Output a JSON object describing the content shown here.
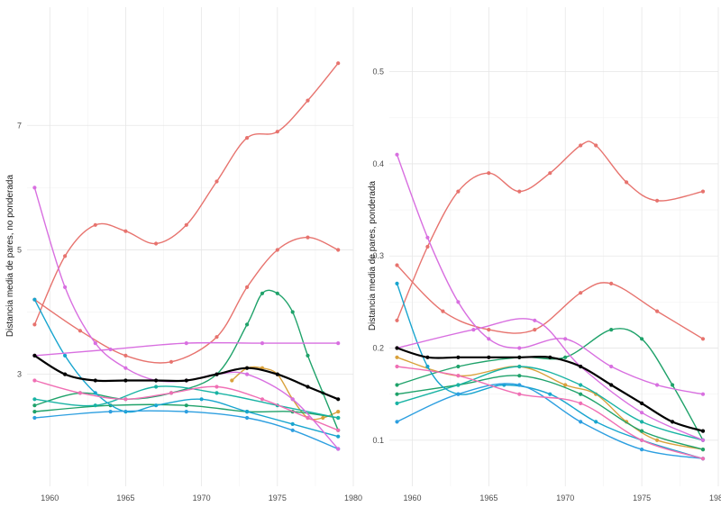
{
  "chart_data": [
    {
      "type": "line",
      "ylabel": "Distancia media de pares, no ponderada",
      "xlim": [
        1958.5,
        1980
      ],
      "ylim": [
        1.2,
        8.9
      ],
      "x_ticks": [
        1960,
        1965,
        1970,
        1975,
        1980
      ],
      "y_ticks": [
        3,
        5,
        7
      ],
      "grid": true,
      "series": [
        {
          "color": "#E7736E",
          "x": [
            1959,
            1961,
            1963,
            1965,
            1967,
            1969,
            1971,
            1973,
            1975,
            1977,
            1979
          ],
          "values": [
            3.8,
            4.9,
            5.4,
            5.3,
            5.1,
            5.4,
            6.1,
            6.8,
            6.9,
            7.4,
            8.0
          ]
        },
        {
          "color": "#E7736E",
          "x": [
            1959,
            1962,
            1965,
            1968,
            1971,
            1973,
            1975,
            1977,
            1979
          ],
          "values": [
            4.2,
            3.7,
            3.3,
            3.2,
            3.6,
            4.4,
            5.0,
            5.2,
            5.0
          ]
        },
        {
          "color": "#D9A13B",
          "x": [
            1972,
            1973,
            1974,
            1975,
            1976,
            1977,
            1978,
            1979
          ],
          "values": [
            2.9,
            3.1,
            3.1,
            3.0,
            2.6,
            2.3,
            2.3,
            2.4
          ]
        },
        {
          "color": "#1FA26A",
          "x": [
            1959,
            1962,
            1965,
            1968,
            1971,
            1973,
            1974,
            1975,
            1976,
            1977,
            1978,
            1979
          ],
          "values": [
            2.5,
            2.7,
            2.6,
            2.7,
            3.0,
            3.8,
            4.3,
            4.3,
            4.0,
            3.3,
            2.7,
            2.1
          ]
        },
        {
          "color": "#1FA26A",
          "x": [
            1959,
            1964,
            1969,
            1973,
            1976,
            1979
          ],
          "values": [
            2.4,
            2.5,
            2.5,
            2.4,
            2.4,
            2.3
          ]
        },
        {
          "color": "#19B3A4",
          "x": [
            1959,
            1963,
            1967,
            1971,
            1975,
            1979
          ],
          "values": [
            2.6,
            2.5,
            2.8,
            2.7,
            2.5,
            2.3
          ]
        },
        {
          "color": "#18A5CF",
          "x": [
            1959,
            1961,
            1963,
            1965,
            1967,
            1970,
            1973,
            1976,
            1979
          ],
          "values": [
            4.2,
            3.3,
            2.7,
            2.4,
            2.5,
            2.6,
            2.4,
            2.2,
            2.0
          ]
        },
        {
          "color": "#2D9FE0",
          "x": [
            1959,
            1964,
            1969,
            1973,
            1976,
            1979
          ],
          "values": [
            2.3,
            2.4,
            2.4,
            2.3,
            2.1,
            1.8
          ]
        },
        {
          "color": "#D86FE0",
          "x": [
            1959,
            1961,
            1963,
            1965,
            1967,
            1969,
            1971,
            1973,
            1976,
            1979
          ],
          "values": [
            6.0,
            4.4,
            3.5,
            3.1,
            2.9,
            2.9,
            3.0,
            3.0,
            2.6,
            1.8
          ]
        },
        {
          "color": "#D86FE0",
          "x": [
            1959,
            1964,
            1969,
            1974,
            1979
          ],
          "values": [
            3.3,
            3.4,
            3.5,
            3.5,
            3.5
          ]
        },
        {
          "color": "#F06FB4",
          "x": [
            1959,
            1962,
            1965,
            1968,
            1971,
            1974,
            1977,
            1979
          ],
          "values": [
            2.9,
            2.7,
            2.6,
            2.7,
            2.8,
            2.6,
            2.3,
            2.1
          ]
        },
        {
          "color": "#000000",
          "x": [
            1959,
            1961,
            1963,
            1965,
            1967,
            1969,
            1971,
            1973,
            1975,
            1977,
            1979
          ],
          "values": [
            3.3,
            3.0,
            2.9,
            2.9,
            2.9,
            2.9,
            3.0,
            3.1,
            3.0,
            2.8,
            2.6
          ]
        }
      ]
    },
    {
      "type": "line",
      "ylabel": "Distancia media de pares, ponderada",
      "xlim": [
        1958.5,
        1980
      ],
      "ylim": [
        0.05,
        0.57
      ],
      "x_ticks": [
        1960,
        1965,
        1970,
        1975,
        1980
      ],
      "y_ticks": [
        0.1,
        0.2,
        0.3,
        0.4,
        0.5
      ],
      "grid": true,
      "series": [
        {
          "color": "#E7736E",
          "x": [
            1959,
            1961,
            1963,
            1965,
            1967,
            1969,
            1971,
            1972,
            1974,
            1976,
            1979
          ],
          "values": [
            0.23,
            0.31,
            0.37,
            0.39,
            0.37,
            0.39,
            0.42,
            0.42,
            0.38,
            0.36,
            0.37
          ]
        },
        {
          "color": "#E7736E",
          "x": [
            1959,
            1962,
            1965,
            1968,
            1971,
            1973,
            1976,
            1979
          ],
          "values": [
            0.29,
            0.24,
            0.22,
            0.22,
            0.26,
            0.27,
            0.24,
            0.21
          ]
        },
        {
          "color": "#D9A13B",
          "x": [
            1959,
            1963,
            1967,
            1970,
            1972,
            1974,
            1976,
            1979
          ],
          "values": [
            0.19,
            0.17,
            0.18,
            0.16,
            0.15,
            0.12,
            0.1,
            0.09
          ]
        },
        {
          "color": "#1FA26A",
          "x": [
            1959,
            1963,
            1967,
            1970,
            1973,
            1975,
            1977,
            1979
          ],
          "values": [
            0.16,
            0.18,
            0.19,
            0.19,
            0.22,
            0.21,
            0.16,
            0.1
          ]
        },
        {
          "color": "#1FA26A",
          "x": [
            1959,
            1963,
            1967,
            1971,
            1975,
            1979
          ],
          "values": [
            0.15,
            0.16,
            0.17,
            0.15,
            0.11,
            0.09
          ]
        },
        {
          "color": "#19B3A4",
          "x": [
            1959,
            1963,
            1967,
            1971,
            1975,
            1979
          ],
          "values": [
            0.14,
            0.16,
            0.18,
            0.16,
            0.12,
            0.1
          ]
        },
        {
          "color": "#18A5CF",
          "x": [
            1959,
            1961,
            1963,
            1966,
            1969,
            1972,
            1975,
            1979
          ],
          "values": [
            0.27,
            0.18,
            0.15,
            0.16,
            0.15,
            0.12,
            0.1,
            0.08
          ]
        },
        {
          "color": "#2D9FE0",
          "x": [
            1959,
            1963,
            1967,
            1971,
            1975,
            1979
          ],
          "values": [
            0.12,
            0.15,
            0.16,
            0.12,
            0.09,
            0.08
          ]
        },
        {
          "color": "#D86FE0",
          "x": [
            1959,
            1961,
            1963,
            1965,
            1967,
            1970,
            1973,
            1976,
            1979
          ],
          "values": [
            0.41,
            0.32,
            0.25,
            0.21,
            0.2,
            0.21,
            0.18,
            0.16,
            0.15
          ]
        },
        {
          "color": "#D86FE0",
          "x": [
            1959,
            1964,
            1968,
            1971,
            1975,
            1979
          ],
          "values": [
            0.2,
            0.22,
            0.23,
            0.18,
            0.13,
            0.1
          ]
        },
        {
          "color": "#F06FB4",
          "x": [
            1959,
            1963,
            1967,
            1971,
            1975,
            1979
          ],
          "values": [
            0.18,
            0.17,
            0.15,
            0.14,
            0.1,
            0.08
          ]
        },
        {
          "color": "#000000",
          "x": [
            1959,
            1961,
            1963,
            1965,
            1967,
            1969,
            1971,
            1973,
            1975,
            1977,
            1979
          ],
          "values": [
            0.2,
            0.19,
            0.19,
            0.19,
            0.19,
            0.19,
            0.18,
            0.16,
            0.14,
            0.12,
            0.11
          ]
        }
      ]
    }
  ]
}
